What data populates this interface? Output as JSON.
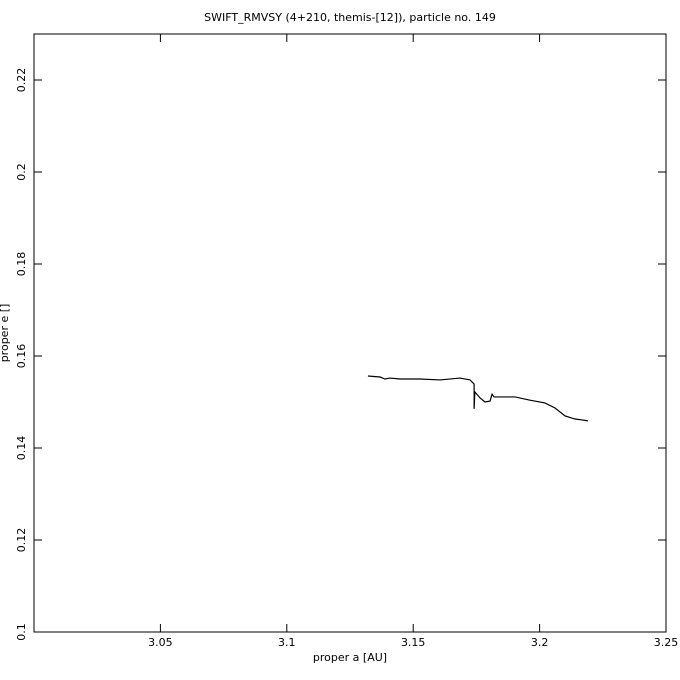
{
  "chart_data": {
    "type": "line",
    "title": "SWIFT_RMVSY (4+210, themis-[12]), particle no. 149",
    "xlabel": "proper a [AU]",
    "ylabel": "proper e []",
    "x": [
      3.1321,
      3.1369,
      3.1388,
      3.1408,
      3.1448,
      3.1527,
      3.1606,
      3.1685,
      3.1725,
      3.1741,
      3.1741,
      3.1744,
      3.1764,
      3.1784,
      3.1804,
      3.1812,
      3.182,
      3.1903,
      3.1962,
      3.2021,
      3.2061,
      3.21,
      3.214,
      3.2168,
      3.2191
    ],
    "series": [
      {
        "color": "#000000",
        "values": [
          0.15565,
          0.15543,
          0.155,
          0.1552,
          0.155,
          0.155,
          0.1548,
          0.1552,
          0.1548,
          0.1539,
          0.1485,
          0.1522,
          0.1509,
          0.15,
          0.1502,
          0.1517,
          0.1511,
          0.1511,
          0.1504,
          0.1498,
          0.1487,
          0.147,
          0.1463,
          0.1461,
          0.1459
        ]
      }
    ],
    "xlim": [
      3.0,
      3.25
    ],
    "xticks": [
      3.05,
      3.1,
      3.15,
      3.2,
      3.25
    ],
    "ylim": [
      0.1,
      0.23
    ],
    "yticks": [
      0.1,
      0.12,
      0.14,
      0.16,
      0.18,
      0.2,
      0.22
    ]
  }
}
